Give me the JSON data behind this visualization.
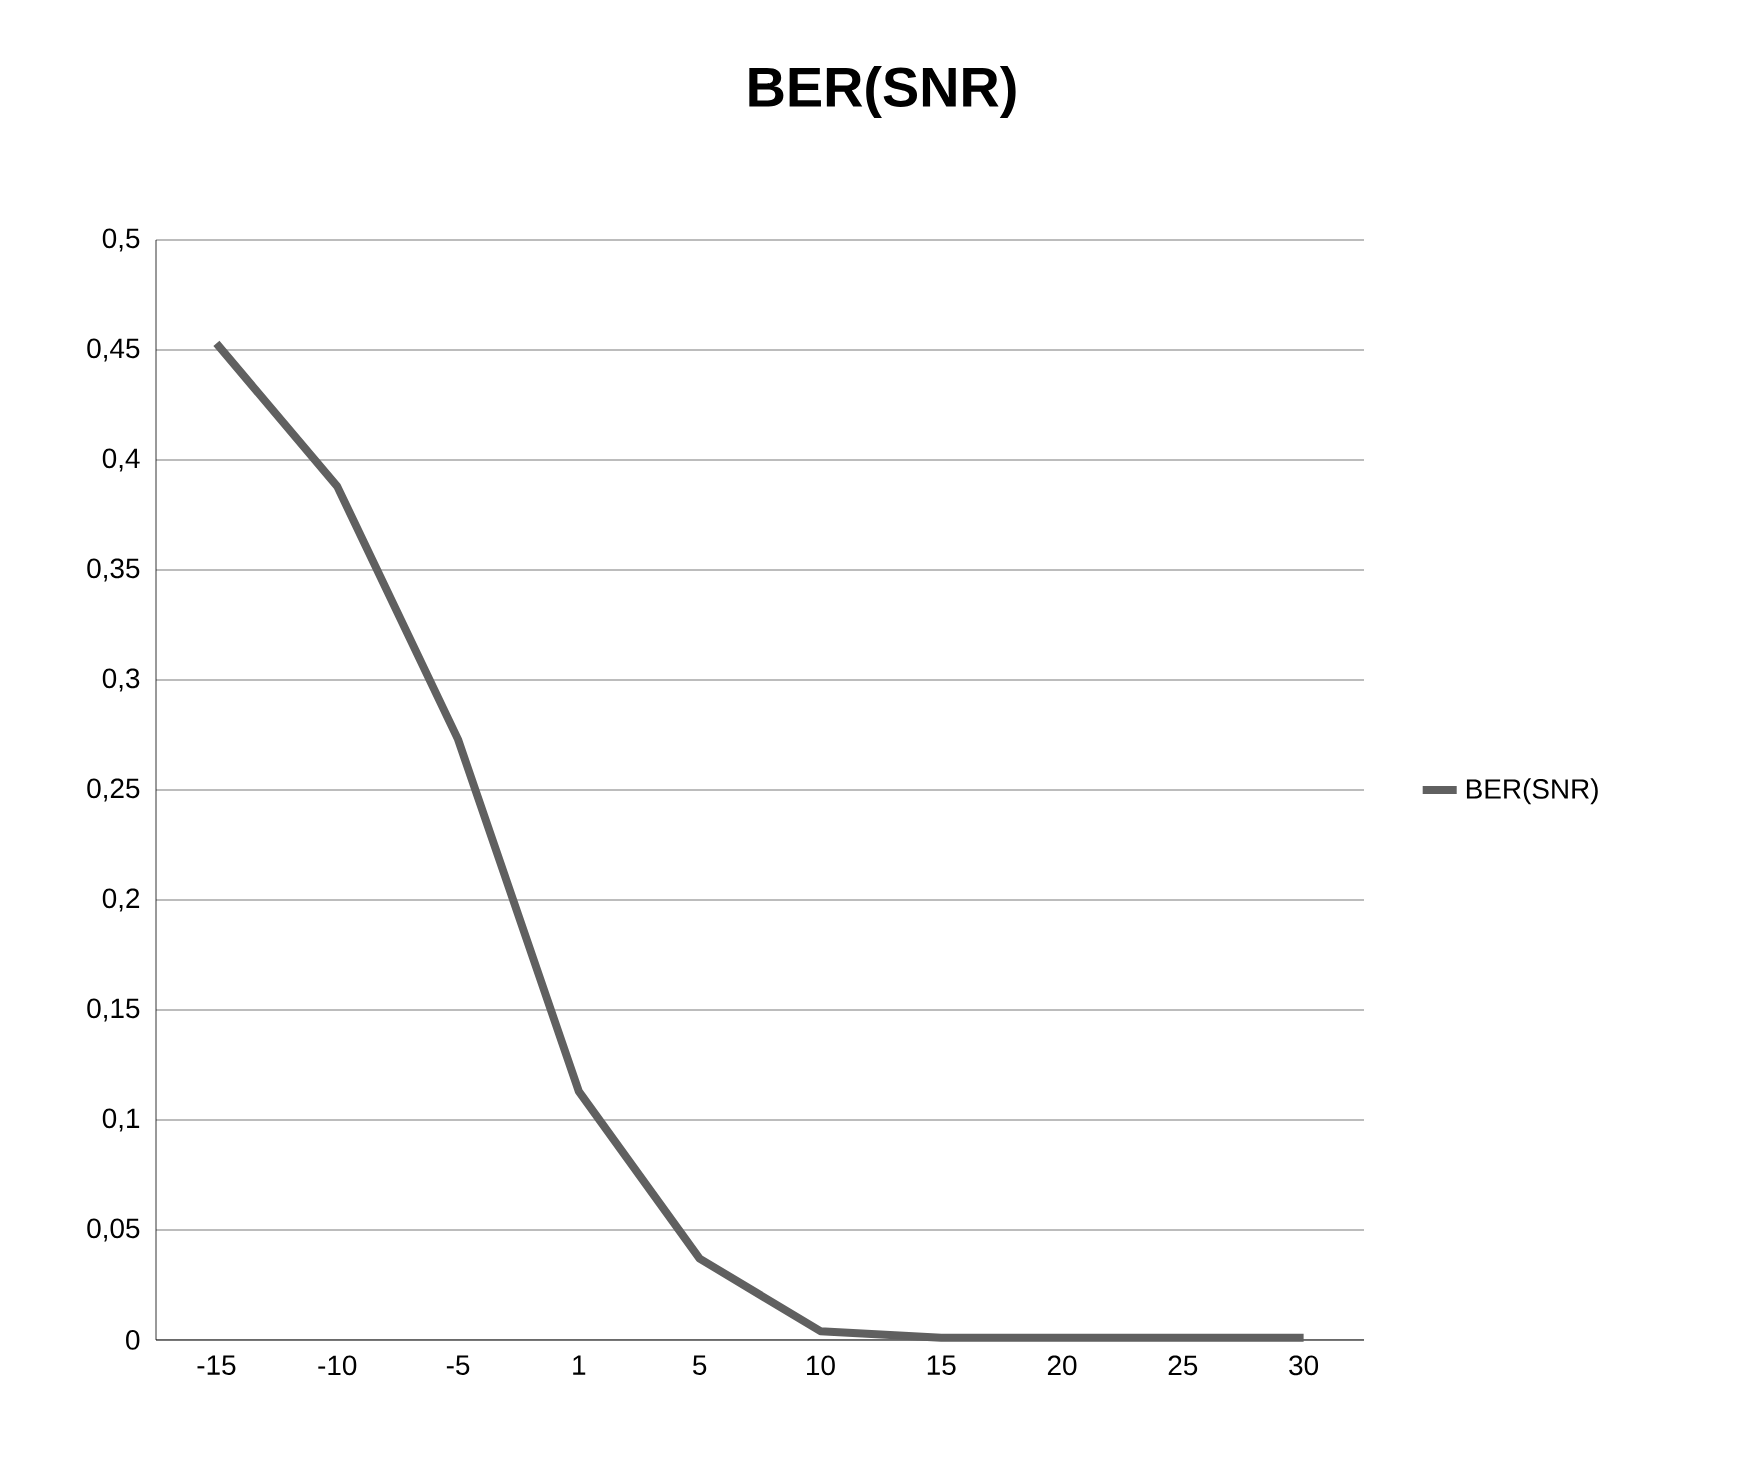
{
  "chart_data": {
    "type": "line",
    "title": "BER(SNR)",
    "categories": [
      "-15",
      "-10",
      "-5",
      "1",
      "5",
      "10",
      "15",
      "20",
      "25",
      "30"
    ],
    "series": [
      {
        "name": "BER(SNR)",
        "color": "#606060",
        "values": [
          0.453,
          0.388,
          0.273,
          0.113,
          0.037,
          0.004,
          0.001,
          0.001,
          0.001,
          0.001
        ]
      }
    ],
    "ylim": [
      0,
      0.5
    ],
    "yticks": [
      0,
      {
        "value": 0.05,
        "label": "0,05"
      },
      {
        "value": 0.1,
        "label": "0,1"
      },
      {
        "value": 0.15,
        "label": "0,15"
      },
      {
        "value": 0.2,
        "label": "0,2"
      },
      {
        "value": 0.25,
        "label": "0,25"
      },
      {
        "value": 0.3,
        "label": "0,3"
      },
      {
        "value": 0.35,
        "label": "0,35"
      },
      {
        "value": 0.4,
        "label": "0,4"
      },
      {
        "value": 0.45,
        "label": "0,45"
      },
      {
        "value": 0.5,
        "label": "0,5"
      }
    ],
    "grid": "y",
    "legend": "right",
    "marker": "none",
    "line_style": "solid"
  }
}
